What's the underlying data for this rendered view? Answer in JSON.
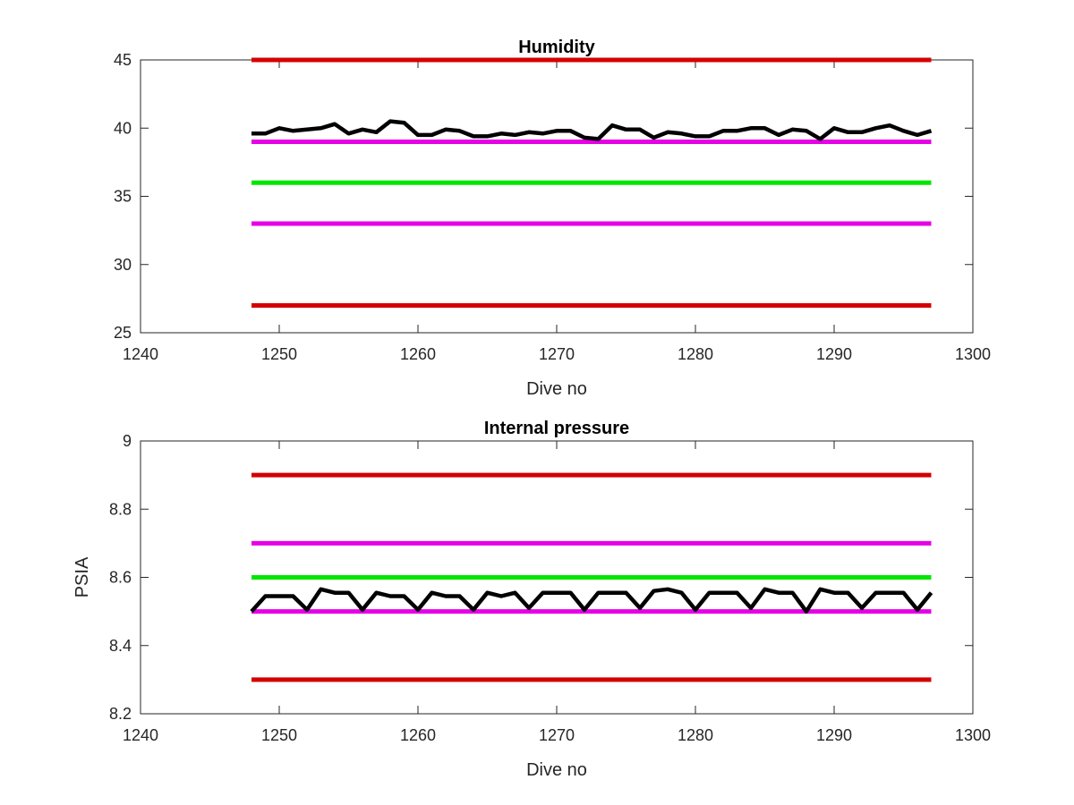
{
  "chart_data": [
    {
      "type": "line",
      "title": "Humidity",
      "xlabel": "Dive no",
      "ylabel": "",
      "xlim": [
        1240,
        1300
      ],
      "ylim": [
        25,
        45
      ],
      "xticks": [
        1240,
        1250,
        1260,
        1270,
        1280,
        1290,
        1300
      ],
      "yticks": [
        25,
        30,
        35,
        40,
        45
      ],
      "grid": false,
      "x_start": 1248,
      "x_end": 1297,
      "reference_lines": [
        {
          "value": 45,
          "color": "#d40000"
        },
        {
          "value": 39,
          "color": "#e600e6"
        },
        {
          "value": 36,
          "color": "#00e600"
        },
        {
          "value": 33,
          "color": "#e600e6"
        },
        {
          "value": 27,
          "color": "#d40000"
        }
      ],
      "series": [
        {
          "color": "#000000",
          "x": [
            1248,
            1249,
            1250,
            1251,
            1252,
            1253,
            1254,
            1255,
            1256,
            1257,
            1258,
            1259,
            1260,
            1261,
            1262,
            1263,
            1264,
            1265,
            1266,
            1267,
            1268,
            1269,
            1270,
            1271,
            1272,
            1273,
            1274,
            1275,
            1276,
            1277,
            1278,
            1279,
            1280,
            1281,
            1282,
            1283,
            1284,
            1285,
            1286,
            1287,
            1288,
            1289,
            1290,
            1291,
            1292,
            1293,
            1294,
            1295,
            1296,
            1297
          ],
          "values": [
            39.6,
            39.6,
            40.0,
            39.8,
            39.9,
            40.0,
            40.3,
            39.6,
            39.9,
            39.7,
            40.5,
            40.4,
            39.5,
            39.5,
            39.9,
            39.8,
            39.4,
            39.4,
            39.6,
            39.5,
            39.7,
            39.6,
            39.8,
            39.8,
            39.3,
            39.2,
            40.2,
            39.9,
            39.9,
            39.3,
            39.7,
            39.6,
            39.4,
            39.4,
            39.8,
            39.8,
            40.0,
            40.0,
            39.5,
            39.9,
            39.8,
            39.2,
            40.0,
            39.7,
            39.7,
            40.0,
            40.2,
            39.8,
            39.5,
            39.8
          ]
        }
      ]
    },
    {
      "type": "line",
      "title": "Internal pressure",
      "xlabel": "Dive no",
      "ylabel": "PSIA",
      "xlim": [
        1240,
        1300
      ],
      "ylim": [
        8.2,
        9.0
      ],
      "xticks": [
        1240,
        1250,
        1260,
        1270,
        1280,
        1290,
        1300
      ],
      "yticks": [
        8.2,
        8.4,
        8.6,
        8.8,
        9.0
      ],
      "ytick_labels": [
        "8.2",
        "8.4",
        "8.6",
        "8.8",
        "9"
      ],
      "grid": false,
      "x_start": 1248,
      "x_end": 1297,
      "reference_lines": [
        {
          "value": 8.9,
          "color": "#d40000"
        },
        {
          "value": 8.7,
          "color": "#e600e6"
        },
        {
          "value": 8.6,
          "color": "#00e600"
        },
        {
          "value": 8.5,
          "color": "#e600e6"
        },
        {
          "value": 8.3,
          "color": "#d40000"
        }
      ],
      "series": [
        {
          "color": "#000000",
          "x": [
            1248,
            1249,
            1250,
            1251,
            1252,
            1253,
            1254,
            1255,
            1256,
            1257,
            1258,
            1259,
            1260,
            1261,
            1262,
            1263,
            1264,
            1265,
            1266,
            1267,
            1268,
            1269,
            1270,
            1271,
            1272,
            1273,
            1274,
            1275,
            1276,
            1277,
            1278,
            1279,
            1280,
            1281,
            1282,
            1283,
            1284,
            1285,
            1286,
            1287,
            1288,
            1289,
            1290,
            1291,
            1292,
            1293,
            1294,
            1295,
            1296,
            1297
          ],
          "values": [
            8.5,
            8.545,
            8.545,
            8.545,
            8.505,
            8.565,
            8.555,
            8.555,
            8.505,
            8.555,
            8.545,
            8.545,
            8.505,
            8.555,
            8.545,
            8.545,
            8.505,
            8.555,
            8.545,
            8.555,
            8.51,
            8.555,
            8.555,
            8.555,
            8.505,
            8.555,
            8.555,
            8.555,
            8.51,
            8.56,
            8.565,
            8.555,
            8.505,
            8.555,
            8.555,
            8.555,
            8.51,
            8.565,
            8.555,
            8.555,
            8.5,
            8.565,
            8.555,
            8.555,
            8.51,
            8.555,
            8.555,
            8.555,
            8.505,
            8.555
          ]
        }
      ]
    }
  ]
}
